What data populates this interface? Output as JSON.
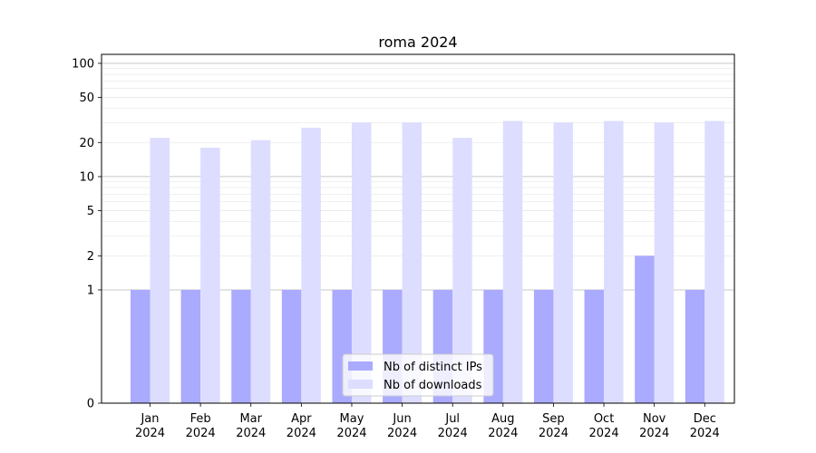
{
  "chart_data": {
    "type": "bar",
    "title": "roma 2024",
    "xlabel": "",
    "ylabel": "",
    "yscale": "symlog",
    "ylim": [
      0,
      120
    ],
    "yticks": [
      0,
      1,
      2,
      5,
      10,
      20,
      50,
      100
    ],
    "grid": true,
    "legend_position": "bottom-center",
    "categories": [
      "Jan\n2024",
      "Feb\n2024",
      "Mar\n2024",
      "Apr\n2024",
      "May\n2024",
      "Jun\n2024",
      "Jul\n2024",
      "Aug\n2024",
      "Sep\n2024",
      "Oct\n2024",
      "Nov\n2024",
      "Dec\n2024"
    ],
    "series": [
      {
        "name": "Nb of distinct IPs",
        "color": "#aaaaff",
        "values": [
          1,
          1,
          1,
          1,
          1,
          1,
          1,
          1,
          1,
          1,
          2,
          1
        ]
      },
      {
        "name": "Nb of downloads",
        "color": "#ddddff",
        "values": [
          22,
          18,
          21,
          27,
          30,
          30,
          22,
          31,
          30,
          31,
          30,
          31
        ]
      }
    ]
  }
}
